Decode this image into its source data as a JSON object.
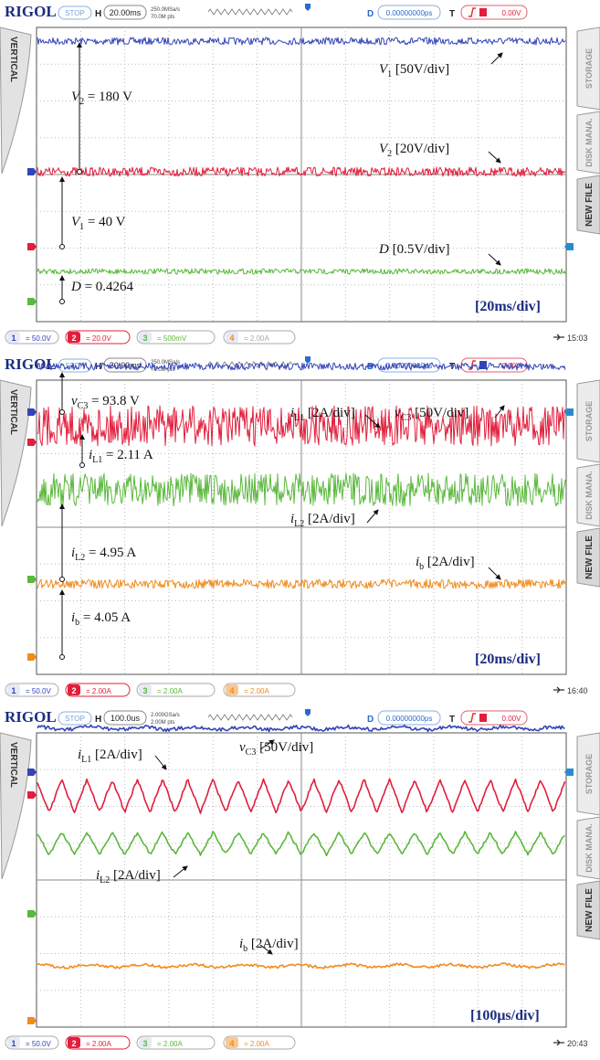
{
  "panels": [
    {
      "header": {
        "brand": "RIGOL",
        "status": "STOP",
        "h": "H",
        "timebase": "20.00ms",
        "sample_rate": "250.0MSa/s",
        "memory_depth": "70.0M pts",
        "d": "D",
        "delay": "0.00000000ps",
        "t": "T",
        "trigger_level": "0.00V"
      },
      "left_tab": "VERTICAL",
      "right_tabs": [
        "STORAGE",
        "DISK MANA.",
        "NEW FILE"
      ],
      "annotations": [
        [
          "V",
          "2",
          " = 180 V"
        ],
        [
          "V",
          "1",
          " [50V/div]"
        ],
        [
          "V",
          "2",
          " [20V/div]"
        ],
        [
          "V",
          "1",
          " = 40 V"
        ],
        [
          "D",
          "",
          " [0.5V/div]"
        ],
        [
          "D",
          "",
          " = 0.4264"
        ]
      ],
      "time_scale": "[20ms/div]",
      "channels": [
        {
          "number": "1",
          "scale": "= 50.0V"
        },
        {
          "number": "2",
          "scale": "= 20.0V"
        },
        {
          "number": "3",
          "scale": "= 500mV"
        },
        {
          "number": "4",
          "scale": "= 2.00A"
        }
      ],
      "clock": "15:03"
    },
    {
      "header": {
        "brand": "RIGOL",
        "status": "STOP",
        "h": "H",
        "timebase": "20.00ms",
        "sample_rate": "250.0MSa/s",
        "memory_depth": "70.0M pts",
        "d": "D",
        "delay": "0.00000000ps",
        "t": "T",
        "trigger_level": "0.00V"
      },
      "left_tab": "VERTICAL",
      "right_tabs": [
        "STORAGE",
        "DISK MANA.",
        "NEW FILE"
      ],
      "annotations": [
        [
          "v",
          "C3",
          " = 93.8 V"
        ],
        [
          "i",
          "L1",
          " [2A/div]"
        ],
        [
          "v",
          "C3",
          " [50V/div]"
        ],
        [
          "i",
          "L1",
          " = 2.11 A"
        ],
        [
          "i",
          "L2",
          " [2A/div]"
        ],
        [
          "i",
          "L2",
          " = 4.95 A"
        ],
        [
          "i",
          "b",
          " [2A/div]"
        ],
        [
          "i",
          "b",
          " = 4.05 A"
        ]
      ],
      "time_scale": "[20ms/div]",
      "channels": [
        {
          "number": "1",
          "scale": "= 50.0V"
        },
        {
          "number": "2",
          "scale": "= 2.00A"
        },
        {
          "number": "3",
          "scale": "= 2.00A"
        },
        {
          "number": "4",
          "scale": "= 2.00A"
        }
      ],
      "clock": "16:40"
    },
    {
      "header": {
        "brand": "RIGOL",
        "status": "STOP",
        "h": "H",
        "timebase": "100.0us",
        "sample_rate": "2.000GSa/s",
        "memory_depth": "2.00M pts",
        "d": "D",
        "delay": "0.00000000ps",
        "t": "T",
        "trigger_level": "0.00V"
      },
      "left_tab": "VERTICAL",
      "right_tabs": [
        "STORAGE",
        "DISK MANA.",
        "NEW FILE"
      ],
      "annotations": [
        [
          "i",
          "L1",
          " [2A/div]"
        ],
        [
          "v",
          "C3",
          " [50V/div]"
        ],
        [
          "i",
          "L2",
          " [2A/div]"
        ],
        [
          "i",
          "b",
          " [2A/div]"
        ]
      ],
      "time_scale": "[100μs/div]",
      "channels": [
        {
          "number": "1",
          "scale": "= 50.0V"
        },
        {
          "number": "2",
          "scale": "= 2.00A"
        },
        {
          "number": "3",
          "scale": "= 2.00A"
        },
        {
          "number": "4",
          "scale": "= 2.00A"
        }
      ],
      "clock": "20:43"
    }
  ]
}
